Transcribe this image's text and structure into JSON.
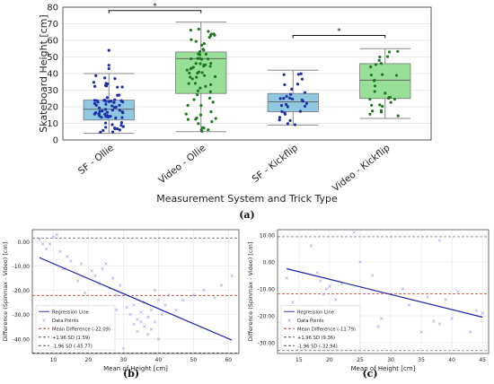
{
  "captions": {
    "a": "(a)",
    "b": "(b)",
    "c": "(c)"
  },
  "chart_data": [
    {
      "id": "a",
      "type": "box",
      "title": "",
      "xlabel": "Measurement System and Trick Type",
      "ylabel": "Skateboard Height [cm]",
      "ylim": [
        0,
        80
      ],
      "yticks": [
        0,
        10,
        20,
        30,
        40,
        50,
        60,
        70,
        80
      ],
      "grid": true,
      "categories": [
        "SF - Ollie",
        "Video - Ollie",
        "SF - Kickflip",
        "Video - Kickflip"
      ],
      "boxes": [
        {
          "whisker_low": 4,
          "q1": 12,
          "median": 18.5,
          "q3": 24,
          "whisker_high": 40,
          "outliers": [
            43,
            45,
            54
          ],
          "color": "#8fc8e0",
          "point_color": "#1f2fa8"
        },
        {
          "whisker_low": 5,
          "q1": 28,
          "median": 49,
          "q3": 53,
          "whisker_high": 71,
          "outliers": [],
          "color": "#98e098",
          "point_color": "#1f7a1f"
        },
        {
          "whisker_low": 9,
          "q1": 17,
          "median": 23,
          "q3": 28,
          "whisker_high": 42,
          "outliers": [],
          "color": "#8fc8e0",
          "point_color": "#1f2fa8"
        },
        {
          "whisker_low": 13,
          "q1": 25,
          "median": 36,
          "q3": 46,
          "whisker_high": 55,
          "outliers": [],
          "color": "#98e098",
          "point_color": "#1f7a1f"
        }
      ],
      "counts": [
        70,
        70,
        30,
        30
      ],
      "significance": [
        {
          "from": 0,
          "to": 1,
          "y": 78,
          "label": "*"
        },
        {
          "from": 2,
          "to": 3,
          "y": 63,
          "label": "*"
        }
      ]
    },
    {
      "id": "b",
      "type": "scatter",
      "title": "",
      "xlabel": "Mean of Height [cm]",
      "ylabel": "Difference (Spinmax - Video) [cm]",
      "xlim": [
        4,
        63
      ],
      "ylim": [
        -46,
        5
      ],
      "xticks": [
        10,
        20,
        30,
        40,
        50,
        60
      ],
      "yticks": [
        0,
        -10,
        -20,
        -30,
        -40
      ],
      "ytick_labels": [
        "0.00",
        "-10.00",
        "-20.00",
        "-30.00",
        "-40.00"
      ],
      "grid": true,
      "points": [
        [
          6,
          1
        ],
        [
          7,
          -1
        ],
        [
          8,
          -3
        ],
        [
          9,
          -1
        ],
        [
          10,
          2
        ],
        [
          11,
          3
        ],
        [
          12,
          -4
        ],
        [
          13,
          -11
        ],
        [
          14,
          -6
        ],
        [
          15,
          -8
        ],
        [
          17,
          -16
        ],
        [
          18,
          -9
        ],
        [
          19,
          -21
        ],
        [
          21,
          -12
        ],
        [
          22,
          -14
        ],
        [
          23,
          -17
        ],
        [
          24,
          -11
        ],
        [
          25,
          -9
        ],
        [
          26,
          -19
        ],
        [
          27,
          -15
        ],
        [
          28,
          -22
        ],
        [
          28,
          -28
        ],
        [
          29,
          -18
        ],
        [
          30,
          -44
        ],
        [
          31,
          -27
        ],
        [
          32,
          -30
        ],
        [
          33,
          -34
        ],
        [
          33,
          -26
        ],
        [
          34,
          -32
        ],
        [
          34,
          -37
        ],
        [
          35,
          -29
        ],
        [
          35,
          -33
        ],
        [
          36,
          -25
        ],
        [
          36,
          -35
        ],
        [
          37,
          -31
        ],
        [
          37,
          -38
        ],
        [
          38,
          -28
        ],
        [
          38,
          -36
        ],
        [
          39,
          -20
        ],
        [
          39,
          -33
        ],
        [
          40,
          -24
        ],
        [
          40,
          -40
        ],
        [
          41,
          -30
        ],
        [
          42,
          -26
        ],
        [
          43,
          -22
        ],
        [
          45,
          -28
        ],
        [
          47,
          -24
        ],
        [
          50,
          -22
        ],
        [
          53,
          -20
        ],
        [
          56,
          -23
        ],
        [
          58,
          -18
        ],
        [
          61,
          -14
        ]
      ],
      "regression": {
        "x": [
          6,
          61
        ],
        "y": [
          -6.5,
          -40.5
        ]
      },
      "mean_difference": -22.09,
      "upper_loa": 1.59,
      "lower_loa": -45.77,
      "legend": [
        "Regression Line",
        "Data Points",
        "Mean Difference (-22.09)",
        "+1.96 SD (1.59)",
        "-1.96 SD (-45.77)"
      ],
      "legend_position": "lower-left"
    },
    {
      "id": "c",
      "type": "scatter",
      "title": "",
      "xlabel": "Mean of Height [cm]",
      "ylabel": "Difference (Spinmax - Video) [cm]",
      "xlim": [
        11.5,
        46
      ],
      "ylim": [
        -34,
        12
      ],
      "xticks": [
        15,
        20,
        25,
        30,
        35,
        40,
        45
      ],
      "yticks": [
        10,
        0,
        -10,
        -20,
        -30
      ],
      "ytick_labels": [
        "10.00",
        "0.00",
        "-10.00",
        "-20.00",
        "-30.00"
      ],
      "grid": true,
      "points": [
        [
          13,
          -6
        ],
        [
          14,
          -15
        ],
        [
          17,
          6
        ],
        [
          18,
          -4
        ],
        [
          18.5,
          -7
        ],
        [
          19,
          -12
        ],
        [
          19.5,
          -10
        ],
        [
          20,
          -9
        ],
        [
          21,
          -14
        ],
        [
          22,
          -8
        ],
        [
          24,
          11
        ],
        [
          25,
          0
        ],
        [
          27,
          -5
        ],
        [
          28,
          -24
        ],
        [
          28.5,
          -21
        ],
        [
          32,
          -10
        ],
        [
          33,
          -16
        ],
        [
          35,
          -26
        ],
        [
          36,
          -13
        ],
        [
          37,
          -22
        ],
        [
          38,
          -23
        ],
        [
          38,
          8
        ],
        [
          39,
          -14
        ],
        [
          40,
          -21
        ],
        [
          41,
          -11
        ],
        [
          43,
          -26
        ],
        [
          44,
          -18
        ],
        [
          45,
          -19
        ]
      ],
      "regression": {
        "x": [
          13,
          45
        ],
        "y": [
          -2.5,
          -20.5
        ]
      },
      "mean_difference": -11.79,
      "upper_loa": 9.36,
      "lower_loa": -32.94,
      "legend": [
        "Regression Line",
        "Data Points",
        "Mean Difference (-11.79)",
        "+1.96 SD (9.36)",
        "-1.96 SD (-32.94)"
      ],
      "legend_position": "lower-left"
    }
  ]
}
